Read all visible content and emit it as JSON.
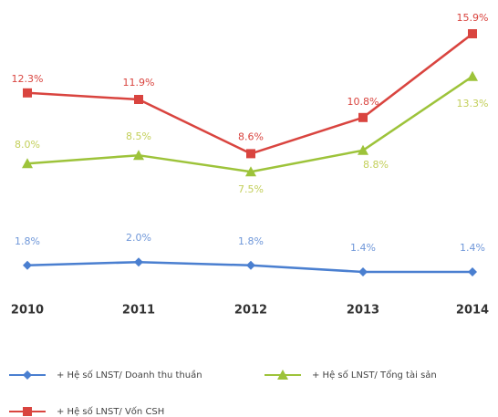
{
  "chart_data": {
    "type": "line",
    "categories": [
      "2010",
      "2011",
      "2012",
      "2013",
      "2014"
    ],
    "series": [
      {
        "name": "+ Hệ số LNST/ Doanh thu thuần",
        "color": "#4a7fd0",
        "values": [
          1.8,
          2.0,
          1.8,
          1.4,
          1.4
        ],
        "value_labels": [
          "1.8%",
          "2.0%",
          "1.8%",
          "1.4%",
          "1.4%"
        ]
      },
      {
        "name": "+ Hệ số LNST/ Tổng tài sản",
        "color": "#9dc33a",
        "values": [
          8.0,
          8.5,
          7.5,
          8.8,
          13.3
        ],
        "value_labels": [
          "8.0%",
          "8.5%",
          "7.5%",
          "8.8%",
          "13.3%"
        ]
      },
      {
        "name": "+ Hệ số LNST/ Vốn CSH",
        "color": "#d9443f",
        "values": [
          12.3,
          11.9,
          8.6,
          10.8,
          15.9
        ],
        "value_labels": [
          "12.3%",
          "11.9%",
          "8.6%",
          "10.8%",
          "15.9%"
        ]
      }
    ]
  }
}
